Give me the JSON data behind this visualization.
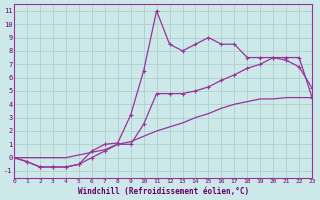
{
  "bg_color": "#cce8e8",
  "grid_color": "#aacccc",
  "line_color": "#993399",
  "xlim": [
    0,
    23
  ],
  "ylim": [
    -1.5,
    11.5
  ],
  "xticks": [
    0,
    1,
    2,
    3,
    4,
    5,
    6,
    7,
    8,
    9,
    10,
    11,
    12,
    13,
    14,
    15,
    16,
    17,
    18,
    19,
    20,
    21,
    22,
    23
  ],
  "yticks": [
    -1,
    0,
    1,
    2,
    3,
    4,
    5,
    6,
    7,
    8,
    9,
    10,
    11
  ],
  "xlabel": "Windchill (Refroidissement éolien,°C)",
  "line_peak_x": [
    0,
    1,
    2,
    3,
    4,
    5,
    6,
    7,
    8,
    9,
    10,
    11,
    12,
    13,
    14,
    15,
    16,
    17,
    18,
    19,
    20,
    21,
    22,
    23
  ],
  "line_peak_y": [
    0.0,
    -0.3,
    -0.7,
    -0.7,
    -0.7,
    -0.5,
    0.5,
    1.0,
    1.1,
    3.2,
    6.5,
    11.0,
    8.5,
    8.0,
    8.5,
    9.0,
    8.5,
    8.5,
    7.5,
    7.5,
    7.5,
    7.3,
    6.8,
    5.2
  ],
  "line_mid_x": [
    0,
    1,
    2,
    3,
    4,
    5,
    6,
    7,
    8,
    9,
    10,
    11,
    12,
    13,
    14,
    15,
    16,
    17,
    18,
    19,
    20,
    21,
    22,
    23
  ],
  "line_mid_y": [
    0.0,
    -0.3,
    -0.7,
    -0.7,
    -0.7,
    -0.5,
    0.0,
    0.5,
    1.0,
    1.0,
    2.5,
    4.8,
    4.8,
    4.8,
    5.0,
    5.3,
    5.8,
    6.2,
    6.7,
    7.0,
    7.5,
    7.5,
    7.5,
    4.5
  ],
  "line_diag_x": [
    0,
    1,
    2,
    3,
    4,
    5,
    6,
    7,
    8,
    9,
    10,
    11,
    12,
    13,
    14,
    15,
    16,
    17,
    18,
    19,
    20,
    21,
    22,
    23
  ],
  "line_diag_y": [
    0.0,
    0.0,
    0.0,
    0.0,
    0.0,
    0.2,
    0.4,
    0.6,
    1.0,
    1.2,
    1.6,
    2.0,
    2.3,
    2.6,
    3.0,
    3.3,
    3.7,
    4.0,
    4.2,
    4.4,
    4.4,
    4.5,
    4.5,
    4.5
  ]
}
